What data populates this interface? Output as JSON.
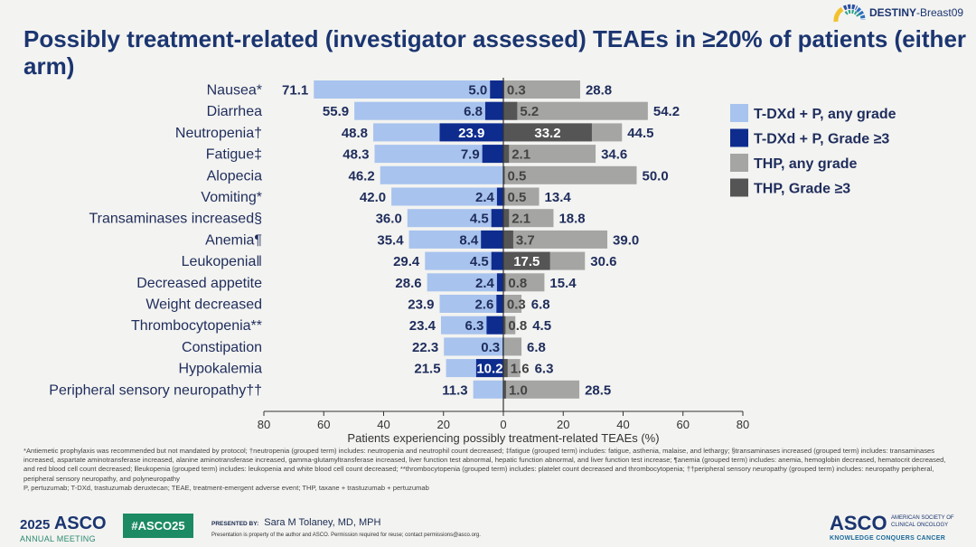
{
  "logo": {
    "brand": "DESTINY",
    "suffix": "-Breast09"
  },
  "title": "Possibly treatment-related (investigator assessed) TEAEs in ≥20% of patients (either arm)",
  "chart_data": {
    "type": "bar",
    "orientation": "horizontal-butterfly",
    "categories": [
      "Nausea*",
      "Diarrhea",
      "Neutropenia†",
      "Fatigue‡",
      "Alopecia",
      "Vomiting*",
      "Transaminases increased§",
      "Anemia¶",
      "Leukopenia‖",
      "Decreased appetite",
      "Weight decreased",
      "Thrombocytopenia**",
      "Constipation",
      "Hypokalemia",
      "Peripheral sensory neuropathy††"
    ],
    "series": [
      {
        "name": "T-DXd + P, any grade",
        "side": "left",
        "color": "#a8c3ee",
        "values": [
          71.1,
          55.9,
          48.8,
          48.3,
          46.2,
          42.0,
          36.0,
          35.4,
          29.4,
          28.6,
          23.9,
          23.4,
          22.3,
          21.5,
          11.3
        ]
      },
      {
        "name": "T-DXd + P, Grade ≥3",
        "side": "left",
        "color": "#0e2c8e",
        "values": [
          5.0,
          6.8,
          23.9,
          7.9,
          null,
          2.4,
          4.5,
          8.4,
          4.5,
          2.4,
          2.6,
          6.3,
          0.3,
          10.2,
          null
        ]
      },
      {
        "name": "THP, any grade",
        "side": "right",
        "color": "#a5a5a3",
        "values": [
          28.8,
          54.2,
          44.5,
          34.6,
          50.0,
          13.4,
          18.8,
          39.0,
          30.6,
          15.4,
          6.8,
          4.5,
          6.8,
          6.3,
          28.5
        ]
      },
      {
        "name": "THP, Grade ≥3",
        "side": "right",
        "color": "#555555",
        "values": [
          0.3,
          5.2,
          33.2,
          2.1,
          0.5,
          0.5,
          2.1,
          3.7,
          17.5,
          0.8,
          0.3,
          0.8,
          null,
          1.6,
          1.0
        ]
      }
    ],
    "xlabel": "Patients experiencing possibly treatment-related TEAEs (%)",
    "xticks": [
      "80",
      "60",
      "40",
      "20",
      "0",
      "20",
      "40",
      "60",
      "80"
    ],
    "xlim": [
      -80,
      80
    ],
    "grid": false,
    "legend": "right"
  },
  "footnotes": [
    "*Antiemetic prophylaxis was recommended but not mandated by protocol; †neutropenia (grouped term) includes: neutropenia and neutrophil count decreased; ‡fatigue (grouped term) includes: fatigue, asthenia, malaise, and lethargy; §transaminases increased (grouped term) includes: transaminases increased, aspartate aminotransferase increased, alanine aminotransferase increased, gamma-glutamyltransferase increased, liver function test abnormal, hepatic function abnormal, and liver function test increase; ¶anemia (grouped term) includes: anemia, hemoglobin decreased, hematocrit decreased, and red blood cell count decreased; ‖leukopenia (grouped term) includes: leukopenia and white blood cell count decreased; **thrombocytopenia (grouped term) includes: platelet count decreased and thrombocytopenia; ††peripheral sensory neuropathy (grouped term) includes: neuropathy peripheral, peripheral sensory neuropathy, and polyneuropathy",
    "P, pertuzumab; T-DXd, trastuzumab deruxtecan; TEAE, treatment-emergent adverse event; THP, taxane + trastuzumab + pertuzumab"
  ],
  "footer": {
    "meeting_year": "2025",
    "meeting_brand": "ASCO",
    "meeting_label": "ANNUAL MEETING",
    "hashtag": "#ASCO25",
    "presented_by_label": "PRESENTED BY:",
    "presenter": "Sara M Tolaney, MD, MPH",
    "property_notice": "Presentation is property of the author and ASCO. Permission required for reuse; contact permissions@asco.org.",
    "society_brand": "ASCO",
    "society_name": "AMERICAN SOCIETY OF CLINICAL ONCOLOGY",
    "tagline": "KNOWLEDGE CONQUERS CANCER"
  }
}
